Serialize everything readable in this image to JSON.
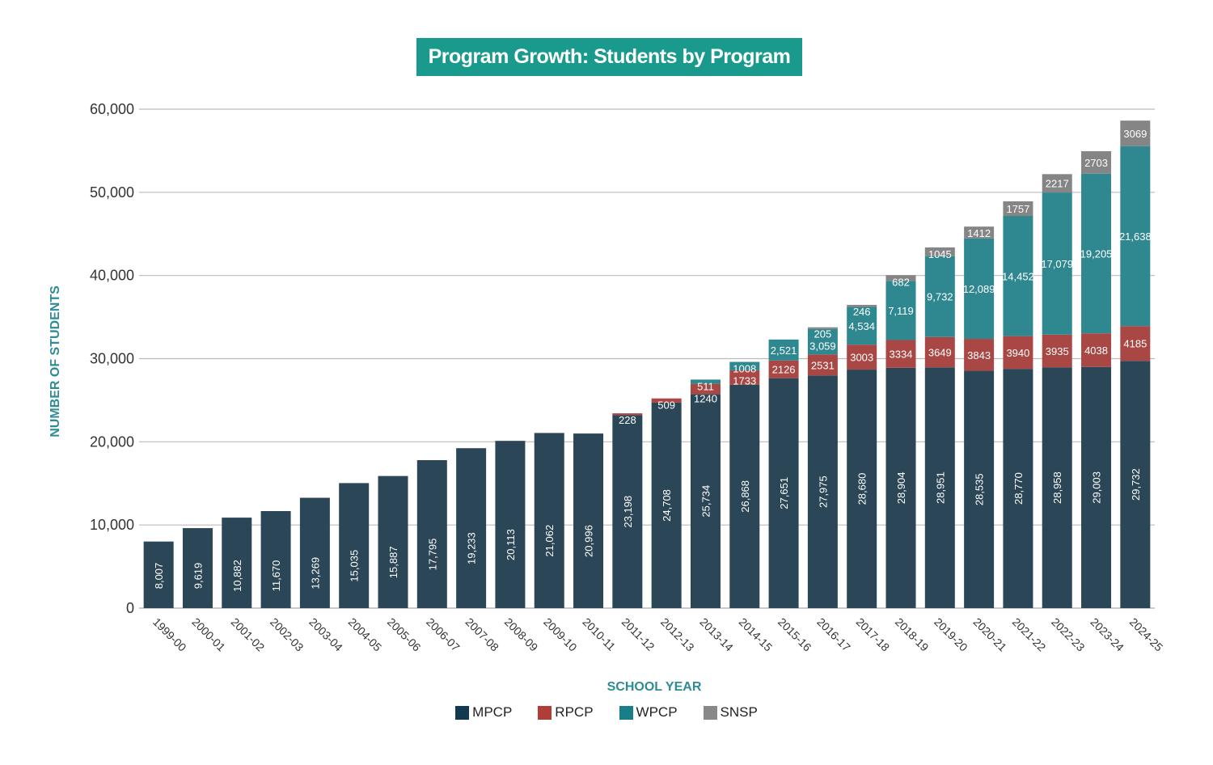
{
  "chart_data": {
    "type": "bar",
    "stacked": true,
    "title": "Program Growth: Students by Program",
    "xlabel": "SCHOOL YEAR",
    "ylabel": "NUMBER OF STUDENTS",
    "ylim": [
      0,
      60000
    ],
    "yticks": [
      "0",
      "10,000",
      "20,000",
      "30,000",
      "40,000",
      "50,000",
      "60,000"
    ],
    "grid": true,
    "legend_placement": "bottom",
    "categories": [
      "1999-00",
      "2000-01",
      "2001-02",
      "2002-03",
      "2003-04",
      "2004-05",
      "2005-06",
      "2006-07",
      "2007-08",
      "2008-09",
      "2009-10",
      "2010-11",
      "2011-12",
      "2012-13",
      "2013-14",
      "2014-15",
      "2015-16",
      "2016-17",
      "2017-18",
      "2018-19",
      "2019-20",
      "2020-21",
      "2021-22",
      "2022-23",
      "2023-24",
      "2024-25"
    ],
    "series": [
      {
        "name": "MPCP",
        "color": "#2b4657",
        "legend_color": "#0f3a4f",
        "values": [
          8007,
          9619,
          10882,
          11670,
          13269,
          15035,
          15887,
          17795,
          19233,
          20113,
          21062,
          20996,
          23198,
          24708,
          25734,
          26868,
          27651,
          27975,
          28680,
          28904,
          28951,
          28535,
          28770,
          28958,
          29003,
          29732
        ],
        "labels": [
          "8,007",
          "9,619",
          "10,882",
          "11,670",
          "13,269",
          "15,035",
          "15,887",
          "17,795",
          "19,233",
          "20,113",
          "21,062",
          "20,996",
          "23,198",
          "24,708",
          "25,734",
          "26,868",
          "27,651",
          "27,975",
          "28,680",
          "28,904",
          "28,951",
          "28,535",
          "28,770",
          "28,958",
          "29,003",
          "29,732"
        ]
      },
      {
        "name": "RPCP",
        "color": "#a94745",
        "legend_color": "#b03e38",
        "values": [
          0,
          0,
          0,
          0,
          0,
          0,
          0,
          0,
          0,
          0,
          0,
          0,
          228,
          509,
          1240,
          1733,
          2126,
          2531,
          3003,
          3334,
          3649,
          3843,
          3940,
          3935,
          4038,
          4185
        ],
        "labels": [
          "",
          "",
          "",
          "",
          "",
          "",
          "",
          "",
          "",
          "",
          "",
          "",
          "228",
          "509",
          "1240",
          "1733",
          "2126",
          "2531",
          "3003",
          "3334",
          "3649",
          "3843",
          "3940",
          "3935",
          "4038",
          "4185"
        ]
      },
      {
        "name": "WPCP",
        "color": "#2f8890",
        "legend_color": "#1a7d8a",
        "values": [
          0,
          0,
          0,
          0,
          0,
          0,
          0,
          0,
          0,
          0,
          0,
          0,
          0,
          0,
          511,
          1008,
          2521,
          3059,
          4534,
          7119,
          9732,
          12089,
          14452,
          17079,
          19205,
          21638
        ],
        "labels": [
          "",
          "",
          "",
          "",
          "",
          "",
          "",
          "",
          "",
          "",
          "",
          "",
          "",
          "",
          "511",
          "1008",
          "2,521",
          "3,059",
          "4,534",
          "7,119",
          "9,732",
          "12,089",
          "14,452",
          "17,079",
          "19,205",
          "21,638"
        ]
      },
      {
        "name": "SNSP",
        "color": "#858585",
        "legend_color": "#888888",
        "values": [
          0,
          0,
          0,
          0,
          0,
          0,
          0,
          0,
          0,
          0,
          0,
          0,
          0,
          0,
          0,
          0,
          0,
          205,
          246,
          682,
          1045,
          1412,
          1757,
          2217,
          2703,
          3069
        ],
        "labels": [
          "",
          "",
          "",
          "",
          "",
          "",
          "",
          "",
          "",
          "",
          "",
          "",
          "",
          "",
          "",
          "",
          "",
          "205",
          "246",
          "682",
          "1045",
          "1412",
          "1757",
          "2217",
          "2703",
          "3069"
        ]
      }
    ]
  }
}
